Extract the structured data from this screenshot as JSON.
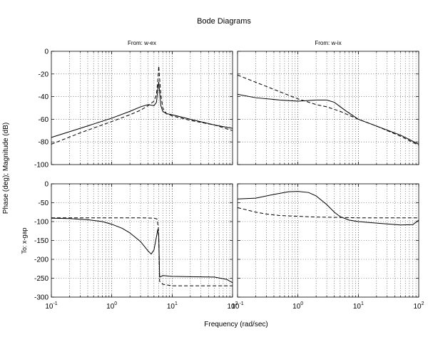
{
  "title": "Bode Diagrams",
  "ylabel": "Phase (deg); Magnitude (dB)",
  "row_label": "To: x-gap",
  "xlabel": "Frequency (rad/sec)",
  "columns": [
    "From: w-ex",
    "From: w-ix"
  ],
  "xticks": {
    "bases": [
      "10",
      "10",
      "10",
      "10"
    ],
    "exps": [
      "-1",
      "0",
      "1",
      "2"
    ]
  },
  "mag_ticks": [
    "0",
    "-20",
    "-40",
    "-60",
    "-80",
    "-100"
  ],
  "phase_ticks": [
    "0",
    "-50",
    "-100",
    "-150",
    "-200",
    "-250",
    "-300"
  ],
  "chart_data": [
    {
      "type": "line",
      "panel": "magnitude",
      "column": "From: w-ex",
      "xscale": "log",
      "xlim": [
        0.1,
        100
      ],
      "ylim": [
        -100,
        0
      ],
      "grid": true,
      "series": [
        {
          "style": "solid",
          "x": [
            0.1,
            0.3,
            1,
            2,
            3,
            4,
            5,
            5.5,
            5.8,
            6,
            6.2,
            6.5,
            7,
            8,
            10,
            20,
            50,
            100
          ],
          "y": [
            -76,
            -68,
            -59,
            -53,
            -49,
            -47,
            -48,
            -45,
            -33,
            -27,
            -36,
            -48,
            -53,
            -55,
            -56,
            -60,
            -65,
            -68
          ]
        },
        {
          "style": "dashed",
          "x": [
            0.1,
            0.3,
            1,
            2,
            3,
            4,
            5,
            5.5,
            5.8,
            6,
            6.2,
            6.5,
            7,
            8,
            10,
            20,
            50,
            100
          ],
          "y": [
            -82,
            -72,
            -62,
            -56,
            -52,
            -48,
            -44,
            -38,
            -25,
            -13,
            -24,
            -38,
            -50,
            -55,
            -57,
            -61,
            -65,
            -70
          ]
        }
      ]
    },
    {
      "type": "line",
      "panel": "magnitude",
      "column": "From: w-ix",
      "xscale": "log",
      "xlim": [
        0.1,
        100
      ],
      "ylim": [
        -100,
        0
      ],
      "grid": true,
      "series": [
        {
          "style": "solid",
          "x": [
            0.1,
            0.2,
            0.5,
            1,
            2,
            3,
            4,
            6,
            10,
            20,
            50,
            100
          ],
          "y": [
            -38,
            -41,
            -43,
            -44,
            -43,
            -43,
            -45,
            -52,
            -60,
            -66,
            -74,
            -82
          ]
        },
        {
          "style": "dashed",
          "x": [
            0.1,
            0.3,
            1,
            2,
            3,
            5,
            10,
            20,
            50,
            100
          ],
          "y": [
            -21,
            -31,
            -42,
            -47,
            -49,
            -53,
            -60,
            -66,
            -75,
            -83
          ]
        }
      ]
    },
    {
      "type": "line",
      "panel": "phase",
      "column": "From: w-ex",
      "xscale": "log",
      "xlim": [
        0.1,
        100
      ],
      "ylim": [
        -300,
        0
      ],
      "grid": true,
      "series": [
        {
          "style": "solid",
          "x": [
            0.1,
            0.2,
            0.4,
            0.7,
            1,
            1.5,
            2,
            3,
            4,
            4.5,
            5,
            5.5,
            5.8,
            6,
            6.2,
            7,
            10,
            20,
            50,
            80,
            100
          ],
          "y": [
            -91,
            -92,
            -95,
            -100,
            -107,
            -118,
            -130,
            -153,
            -178,
            -186,
            -175,
            -140,
            -120,
            -140,
            -247,
            -243,
            -245,
            -246,
            -247,
            -253,
            -262
          ]
        },
        {
          "style": "dashed",
          "x": [
            0.1,
            0.5,
            1,
            3,
            5,
            5.6,
            5.9,
            6,
            6.2,
            7,
            10,
            100
          ],
          "y": [
            -90,
            -90,
            -90,
            -90,
            -91,
            -93,
            -115,
            -140,
            -258,
            -266,
            -270,
            -270
          ]
        }
      ]
    },
    {
      "type": "line",
      "panel": "phase",
      "column": "From: w-ix",
      "xscale": "log",
      "xlim": [
        0.1,
        100
      ],
      "ylim": [
        -300,
        0
      ],
      "grid": true,
      "series": [
        {
          "style": "solid",
          "x": [
            0.1,
            0.2,
            0.4,
            0.7,
            1,
            1.5,
            2,
            3,
            4,
            5,
            7,
            10,
            20,
            50,
            80,
            100
          ],
          "y": [
            -40,
            -38,
            -28,
            -21,
            -20,
            -23,
            -32,
            -55,
            -75,
            -87,
            -96,
            -100,
            -104,
            -109,
            -108,
            -96
          ]
        },
        {
          "style": "dashed",
          "x": [
            0.1,
            0.2,
            0.3,
            0.5,
            1,
            2,
            5,
            10,
            100
          ],
          "y": [
            -63,
            -75,
            -80,
            -84,
            -86,
            -88,
            -89,
            -90,
            -90
          ]
        }
      ]
    }
  ]
}
